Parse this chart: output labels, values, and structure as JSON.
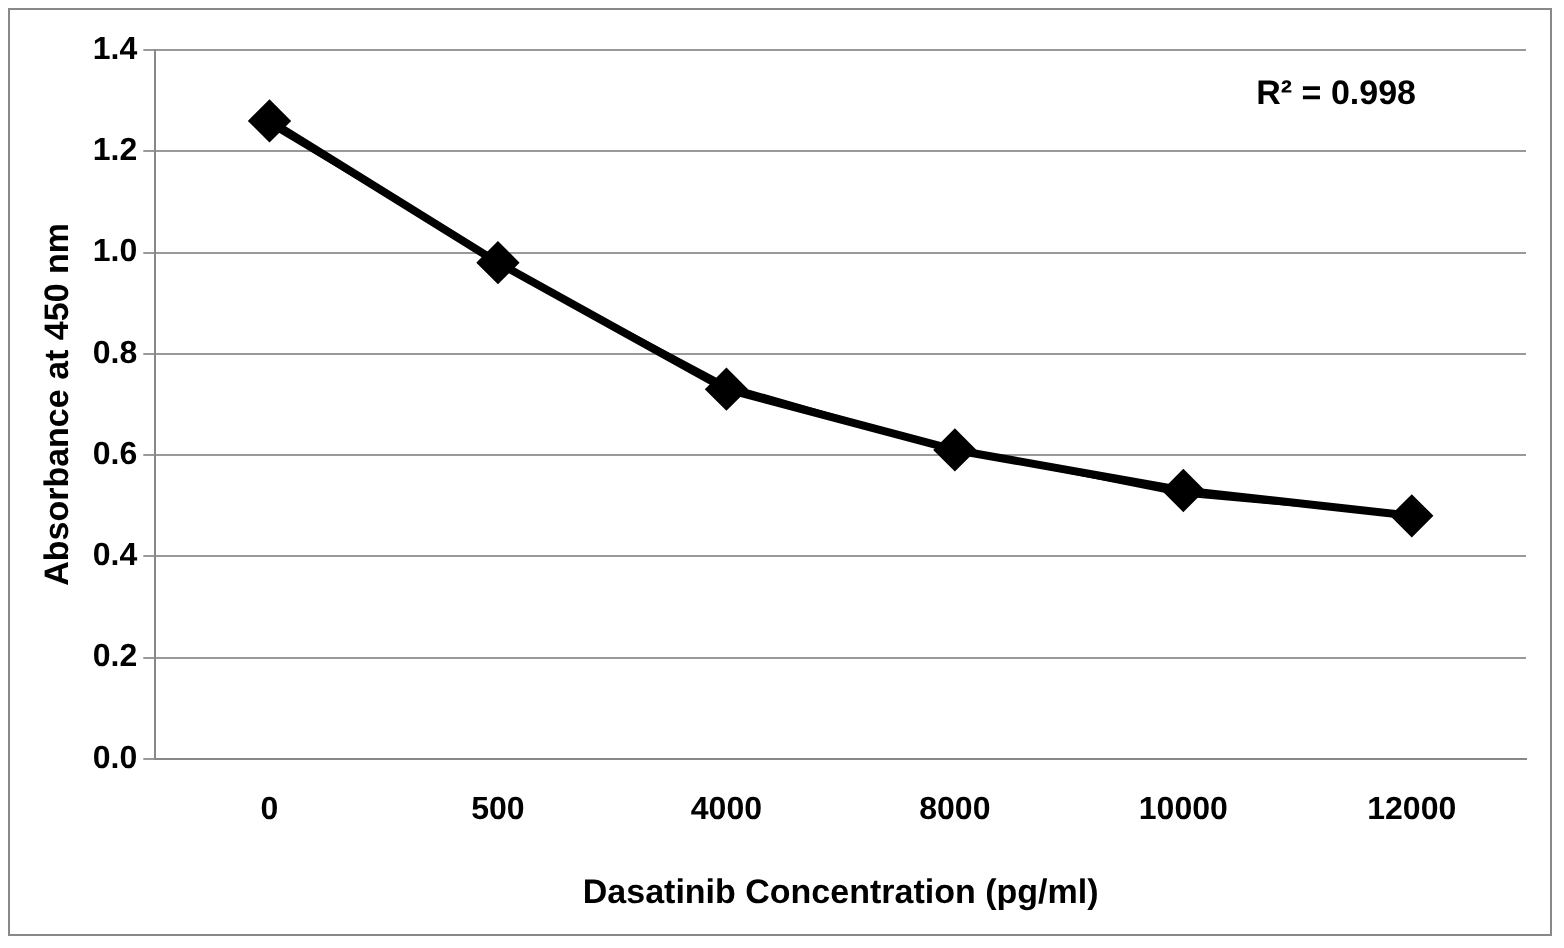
{
  "chart_data": {
    "type": "line",
    "xlabel": "Dasatinib Concentration (pg/ml)",
    "ylabel": "Absorbance at 450 nm",
    "categories": [
      "0",
      "500",
      "4000",
      "8000",
      "10000",
      "12000"
    ],
    "series": [
      {
        "color": "#000000",
        "values": [
          1.26,
          0.98,
          0.73,
          0.61,
          0.53,
          0.48
        ],
        "marker": "diamond"
      },
      {
        "color": "#000000",
        "values": [
          1.25,
          0.98,
          0.74,
          0.61,
          0.52,
          0.48
        ],
        "marker": "none"
      }
    ],
    "ylim": [
      0,
      1.4
    ],
    "yticks": [
      {
        "value": 0,
        "label": "0.0"
      },
      0.2,
      0.4,
      0.6,
      0.8,
      {
        "value": 1,
        "label": "1.0"
      },
      1.2,
      1.4
    ],
    "grid": "y",
    "legend": false,
    "annotations": [
      "R² = 0.998"
    ]
  }
}
